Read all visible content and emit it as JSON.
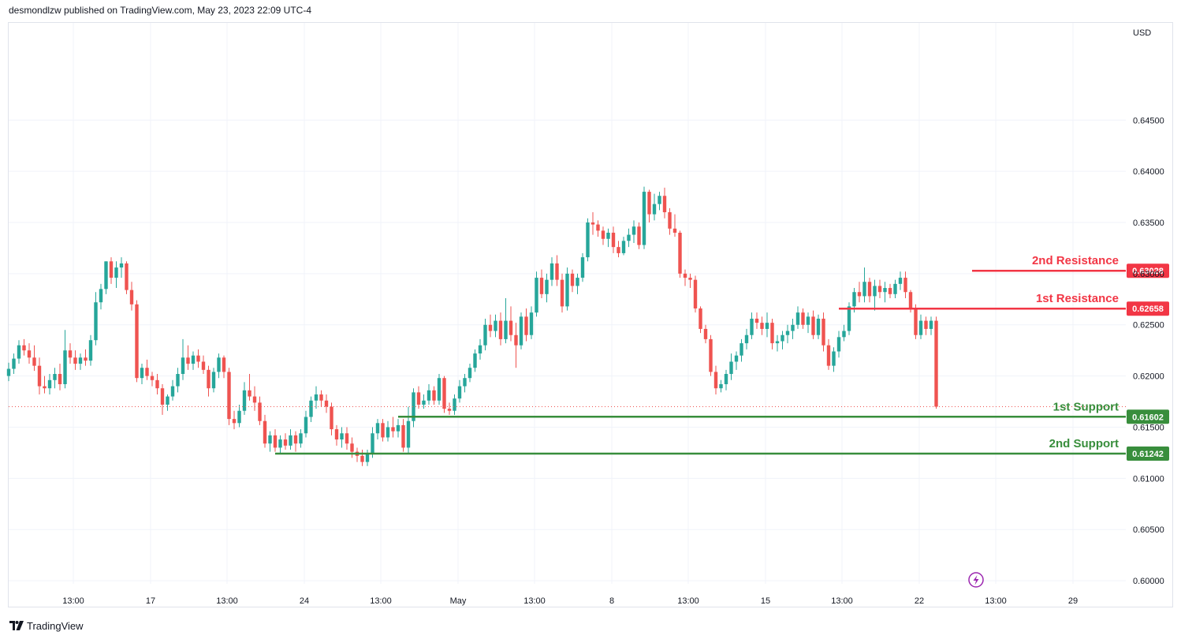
{
  "header": {
    "published": "desmondlzw published on TradingView.com, May 23, 2023 22:09 UTC-4"
  },
  "footer": {
    "brand": "TradingView"
  },
  "colors": {
    "up": "#26a69a",
    "down": "#ef5350",
    "resistance": "#f23645",
    "support": "#388e3c",
    "current_price_line": "#ef5350",
    "grid": "#f0f3fa",
    "axis_text": "#131722",
    "lightning": "#9c27b0"
  },
  "chart_data": {
    "type": "candlestick",
    "currency_label": "USD",
    "ylim": [
      0.5997,
      0.6545
    ],
    "y_ticks": [
      "0.60000",
      "0.60500",
      "0.61000",
      "0.61500",
      "0.62000",
      "0.62500",
      "0.63000",
      "0.63500",
      "0.64000",
      "0.64500"
    ],
    "x_tick_labels": [
      "13:00",
      "17",
      "13:00",
      "24",
      "13:00",
      "May",
      "13:00",
      "8",
      "13:00",
      "15",
      "13:00",
      "22",
      "13:00",
      "29"
    ],
    "last_price": 0.617,
    "levels": [
      {
        "label": "2nd Resistance",
        "value": 0.63028,
        "value_label": "0.63028",
        "kind": "resistance",
        "start_bar": 188
      },
      {
        "label": "1st Resistance",
        "value": 0.62658,
        "value_label": "0.62658",
        "kind": "resistance",
        "start_bar": 162
      },
      {
        "label": "1st Support",
        "value": 0.61602,
        "value_label": "0.61602",
        "kind": "support",
        "start_bar": 76
      },
      {
        "label": "2nd Support",
        "value": 0.61242,
        "value_label": "0.61242",
        "kind": "support",
        "start_bar": 52
      }
    ],
    "ohlc": [
      [
        0.62,
        0.6213,
        0.6195,
        0.6207
      ],
      [
        0.6207,
        0.6222,
        0.6202,
        0.6217
      ],
      [
        0.6217,
        0.6235,
        0.6212,
        0.623
      ],
      [
        0.623,
        0.6236,
        0.622,
        0.6225
      ],
      [
        0.6225,
        0.6232,
        0.6212,
        0.6218
      ],
      [
        0.6218,
        0.623,
        0.6205,
        0.621
      ],
      [
        0.621,
        0.6218,
        0.6182,
        0.619
      ],
      [
        0.619,
        0.62,
        0.6183,
        0.6188
      ],
      [
        0.6188,
        0.6202,
        0.6182,
        0.6196
      ],
      [
        0.6196,
        0.6208,
        0.6188,
        0.6202
      ],
      [
        0.6202,
        0.6212,
        0.6186,
        0.6192
      ],
      [
        0.6192,
        0.6245,
        0.6188,
        0.6225
      ],
      [
        0.6225,
        0.6232,
        0.6212,
        0.6218
      ],
      [
        0.6218,
        0.6225,
        0.6206,
        0.6212
      ],
      [
        0.6212,
        0.6222,
        0.6206,
        0.6218
      ],
      [
        0.6218,
        0.6226,
        0.621,
        0.6215
      ],
      [
        0.6215,
        0.624,
        0.621,
        0.6235
      ],
      [
        0.6235,
        0.6282,
        0.623,
        0.6272
      ],
      [
        0.6272,
        0.629,
        0.6265,
        0.6285
      ],
      [
        0.6285,
        0.6312,
        0.628,
        0.6312
      ],
      [
        0.6312,
        0.6316,
        0.629,
        0.6296
      ],
      [
        0.6296,
        0.6312,
        0.6286,
        0.6306
      ],
      [
        0.6306,
        0.6316,
        0.6296,
        0.631
      ],
      [
        0.631,
        0.6312,
        0.628,
        0.6284
      ],
      [
        0.6284,
        0.6292,
        0.6264,
        0.627
      ],
      [
        0.627,
        0.6274,
        0.6194,
        0.6198
      ],
      [
        0.6198,
        0.6212,
        0.6192,
        0.6208
      ],
      [
        0.6208,
        0.6216,
        0.6196,
        0.62
      ],
      [
        0.62,
        0.6204,
        0.619,
        0.6196
      ],
      [
        0.6196,
        0.6202,
        0.6182,
        0.6188
      ],
      [
        0.6188,
        0.6192,
        0.6162,
        0.6172
      ],
      [
        0.6172,
        0.6182,
        0.6166,
        0.618
      ],
      [
        0.618,
        0.6196,
        0.6176,
        0.619
      ],
      [
        0.619,
        0.6208,
        0.6184,
        0.6202
      ],
      [
        0.6202,
        0.6236,
        0.6196,
        0.6218
      ],
      [
        0.6218,
        0.623,
        0.6206,
        0.6212
      ],
      [
        0.6212,
        0.6224,
        0.6206,
        0.622
      ],
      [
        0.622,
        0.6226,
        0.6208,
        0.6214
      ],
      [
        0.6214,
        0.622,
        0.6202,
        0.6206
      ],
      [
        0.6206,
        0.621,
        0.618,
        0.6188
      ],
      [
        0.6188,
        0.6208,
        0.6184,
        0.6204
      ],
      [
        0.6204,
        0.6222,
        0.6198,
        0.6218
      ],
      [
        0.6218,
        0.622,
        0.6198,
        0.6204
      ],
      [
        0.6204,
        0.6208,
        0.6152,
        0.6158
      ],
      [
        0.6158,
        0.6166,
        0.6148,
        0.6154
      ],
      [
        0.6154,
        0.6172,
        0.615,
        0.6166
      ],
      [
        0.6166,
        0.6194,
        0.6162,
        0.6186
      ],
      [
        0.6186,
        0.6202,
        0.6176,
        0.618
      ],
      [
        0.618,
        0.619,
        0.6166,
        0.6174
      ],
      [
        0.6174,
        0.618,
        0.6152,
        0.6156
      ],
      [
        0.6156,
        0.6162,
        0.613,
        0.6134
      ],
      [
        0.6134,
        0.6146,
        0.6126,
        0.6142
      ],
      [
        0.6142,
        0.6148,
        0.6126,
        0.613
      ],
      [
        0.613,
        0.6142,
        0.6124,
        0.6138
      ],
      [
        0.6138,
        0.6144,
        0.6128,
        0.6132
      ],
      [
        0.6132,
        0.6148,
        0.6128,
        0.6142
      ],
      [
        0.6142,
        0.6146,
        0.6126,
        0.6134
      ],
      [
        0.6134,
        0.6148,
        0.613,
        0.6144
      ],
      [
        0.6144,
        0.6166,
        0.614,
        0.616
      ],
      [
        0.616,
        0.618,
        0.6155,
        0.6176
      ],
      [
        0.6176,
        0.619,
        0.6168,
        0.6182
      ],
      [
        0.6182,
        0.6186,
        0.617,
        0.6176
      ],
      [
        0.6176,
        0.6182,
        0.6164,
        0.617
      ],
      [
        0.617,
        0.6174,
        0.6142,
        0.6148
      ],
      [
        0.6148,
        0.6152,
        0.6132,
        0.6138
      ],
      [
        0.6138,
        0.615,
        0.613,
        0.6144
      ],
      [
        0.6144,
        0.615,
        0.6128,
        0.6134
      ],
      [
        0.6134,
        0.614,
        0.612,
        0.6126
      ],
      [
        0.6126,
        0.613,
        0.6116,
        0.6122
      ],
      [
        0.6122,
        0.6128,
        0.6112,
        0.6116
      ],
      [
        0.6116,
        0.6128,
        0.6112,
        0.6124
      ],
      [
        0.6124,
        0.615,
        0.612,
        0.6144
      ],
      [
        0.6144,
        0.6158,
        0.6138,
        0.6154
      ],
      [
        0.6154,
        0.6158,
        0.6136,
        0.614
      ],
      [
        0.614,
        0.6156,
        0.6136,
        0.615
      ],
      [
        0.615,
        0.616,
        0.614,
        0.6146
      ],
      [
        0.6146,
        0.6158,
        0.614,
        0.6152
      ],
      [
        0.6152,
        0.6158,
        0.6126,
        0.613
      ],
      [
        0.613,
        0.617,
        0.6124,
        0.6156
      ],
      [
        0.6156,
        0.6188,
        0.615,
        0.6184
      ],
      [
        0.6184,
        0.619,
        0.6168,
        0.6172
      ],
      [
        0.6172,
        0.6182,
        0.6168,
        0.6176
      ],
      [
        0.6176,
        0.6192,
        0.6172,
        0.6186
      ],
      [
        0.6186,
        0.619,
        0.6172,
        0.6176
      ],
      [
        0.6176,
        0.6202,
        0.6172,
        0.6198
      ],
      [
        0.6198,
        0.62,
        0.6164,
        0.6168
      ],
      [
        0.6168,
        0.6174,
        0.6162,
        0.6166
      ],
      [
        0.6166,
        0.6182,
        0.6162,
        0.6178
      ],
      [
        0.6178,
        0.6196,
        0.6174,
        0.619
      ],
      [
        0.619,
        0.6202,
        0.6184,
        0.6198
      ],
      [
        0.6198,
        0.6212,
        0.6194,
        0.6208
      ],
      [
        0.6208,
        0.6226,
        0.6204,
        0.6222
      ],
      [
        0.6222,
        0.6236,
        0.6216,
        0.623
      ],
      [
        0.623,
        0.6256,
        0.6225,
        0.625
      ],
      [
        0.625,
        0.626,
        0.6238,
        0.6244
      ],
      [
        0.6244,
        0.626,
        0.6238,
        0.6254
      ],
      [
        0.6254,
        0.6262,
        0.623,
        0.6236
      ],
      [
        0.6236,
        0.6276,
        0.6232,
        0.6254
      ],
      [
        0.6254,
        0.6268,
        0.6234,
        0.624
      ],
      [
        0.624,
        0.6252,
        0.6208,
        0.623
      ],
      [
        0.623,
        0.6262,
        0.6226,
        0.6258
      ],
      [
        0.6258,
        0.6266,
        0.6234,
        0.624
      ],
      [
        0.624,
        0.6268,
        0.6236,
        0.6262
      ],
      [
        0.6262,
        0.6302,
        0.6258,
        0.6296
      ],
      [
        0.6296,
        0.6304,
        0.6276,
        0.628
      ],
      [
        0.628,
        0.63,
        0.6272,
        0.6294
      ],
      [
        0.6294,
        0.6316,
        0.6288,
        0.631
      ],
      [
        0.631,
        0.6318,
        0.6288,
        0.6294
      ],
      [
        0.6294,
        0.63,
        0.6262,
        0.6268
      ],
      [
        0.6268,
        0.6306,
        0.6264,
        0.63
      ],
      [
        0.63,
        0.6304,
        0.6282,
        0.6288
      ],
      [
        0.6288,
        0.63,
        0.628,
        0.6296
      ],
      [
        0.6296,
        0.632,
        0.6292,
        0.6316
      ],
      [
        0.6316,
        0.6354,
        0.6312,
        0.635
      ],
      [
        0.635,
        0.636,
        0.6338,
        0.6348
      ],
      [
        0.6348,
        0.6352,
        0.6336,
        0.6342
      ],
      [
        0.6342,
        0.6346,
        0.6328,
        0.6334
      ],
      [
        0.6334,
        0.6344,
        0.6326,
        0.634
      ],
      [
        0.634,
        0.6346,
        0.632,
        0.6326
      ],
      [
        0.6326,
        0.6332,
        0.6316,
        0.632
      ],
      [
        0.632,
        0.6336,
        0.6318,
        0.6332
      ],
      [
        0.6332,
        0.6344,
        0.6326,
        0.6338
      ],
      [
        0.6338,
        0.6352,
        0.633,
        0.6346
      ],
      [
        0.6346,
        0.635,
        0.6324,
        0.6328
      ],
      [
        0.6328,
        0.6385,
        0.6324,
        0.638
      ],
      [
        0.638,
        0.6382,
        0.635,
        0.6358
      ],
      [
        0.6358,
        0.6378,
        0.6352,
        0.6368
      ],
      [
        0.6368,
        0.638,
        0.6362,
        0.6376
      ],
      [
        0.6376,
        0.6384,
        0.6354,
        0.636
      ],
      [
        0.636,
        0.6364,
        0.6338,
        0.6344
      ],
      [
        0.6344,
        0.6358,
        0.6336,
        0.634
      ],
      [
        0.634,
        0.6342,
        0.6296,
        0.63
      ],
      [
        0.63,
        0.6304,
        0.6288,
        0.6296
      ],
      [
        0.6296,
        0.63,
        0.6286,
        0.6294
      ],
      [
        0.6294,
        0.6298,
        0.6262,
        0.6266
      ],
      [
        0.6266,
        0.6268,
        0.6242,
        0.6246
      ],
      [
        0.6246,
        0.625,
        0.6232,
        0.6236
      ],
      [
        0.6236,
        0.624,
        0.62,
        0.6204
      ],
      [
        0.6204,
        0.621,
        0.6182,
        0.6188
      ],
      [
        0.6188,
        0.6196,
        0.6184,
        0.6192
      ],
      [
        0.6192,
        0.6206,
        0.6186,
        0.6202
      ],
      [
        0.6202,
        0.6222,
        0.6196,
        0.6214
      ],
      [
        0.6214,
        0.6224,
        0.6206,
        0.622
      ],
      [
        0.622,
        0.6236,
        0.6214,
        0.6232
      ],
      [
        0.6232,
        0.6246,
        0.6226,
        0.624
      ],
      [
        0.624,
        0.6262,
        0.6236,
        0.6256
      ],
      [
        0.6256,
        0.6262,
        0.6246,
        0.6252
      ],
      [
        0.6252,
        0.6258,
        0.624,
        0.6246
      ],
      [
        0.6246,
        0.6262,
        0.6238,
        0.6252
      ],
      [
        0.6252,
        0.6256,
        0.6226,
        0.6232
      ],
      [
        0.6232,
        0.624,
        0.6224,
        0.6234
      ],
      [
        0.6234,
        0.6244,
        0.6226,
        0.624
      ],
      [
        0.624,
        0.625,
        0.6232,
        0.6244
      ],
      [
        0.6244,
        0.6256,
        0.6236,
        0.625
      ],
      [
        0.625,
        0.6268,
        0.6246,
        0.6262
      ],
      [
        0.6262,
        0.6266,
        0.6246,
        0.625
      ],
      [
        0.625,
        0.6262,
        0.6242,
        0.6258
      ],
      [
        0.6258,
        0.6264,
        0.6236,
        0.624
      ],
      [
        0.624,
        0.626,
        0.6236,
        0.6256
      ],
      [
        0.6256,
        0.6262,
        0.6224,
        0.623
      ],
      [
        0.623,
        0.6236,
        0.6206,
        0.621
      ],
      [
        0.621,
        0.6228,
        0.6204,
        0.6224
      ],
      [
        0.6224,
        0.6244,
        0.6218,
        0.6238
      ],
      [
        0.6238,
        0.625,
        0.6234,
        0.6244
      ],
      [
        0.6244,
        0.6272,
        0.624,
        0.6268
      ],
      [
        0.6268,
        0.6286,
        0.6262,
        0.6282
      ],
      [
        0.6282,
        0.6292,
        0.6272,
        0.6278
      ],
      [
        0.6278,
        0.6306,
        0.6272,
        0.6292
      ],
      [
        0.6292,
        0.6296,
        0.6272,
        0.6278
      ],
      [
        0.6278,
        0.6294,
        0.6264,
        0.6288
      ],
      [
        0.6288,
        0.6294,
        0.6276,
        0.6282
      ],
      [
        0.6282,
        0.6292,
        0.6272,
        0.6286
      ],
      [
        0.6286,
        0.629,
        0.6276,
        0.628
      ],
      [
        0.628,
        0.6294,
        0.6276,
        0.629
      ],
      [
        0.629,
        0.6302,
        0.6284,
        0.6296
      ],
      [
        0.6296,
        0.6302,
        0.6276,
        0.6282
      ],
      [
        0.6282,
        0.6284,
        0.6262,
        0.6266
      ],
      [
        0.6266,
        0.627,
        0.6236,
        0.624
      ],
      [
        0.624,
        0.626,
        0.6236,
        0.6254
      ],
      [
        0.6254,
        0.6258,
        0.624,
        0.6246
      ],
      [
        0.6246,
        0.6258,
        0.624,
        0.6254
      ],
      [
        0.6254,
        0.6258,
        0.6168,
        0.617
      ]
    ]
  }
}
